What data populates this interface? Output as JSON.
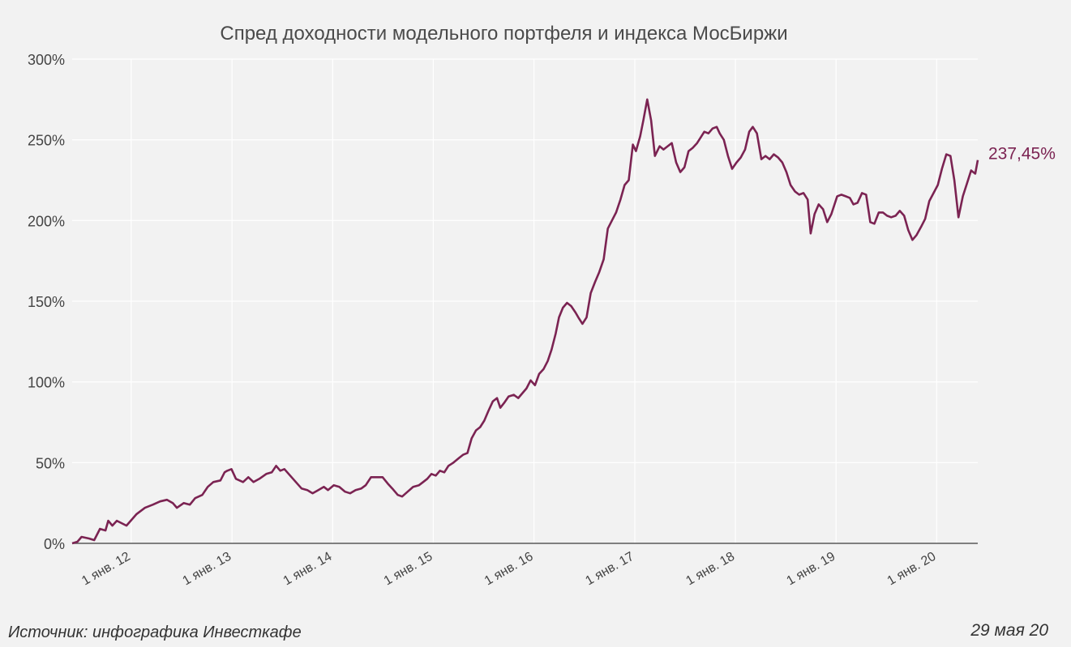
{
  "title": "Спред доходности модельного портфеля и индекса МосБиржи",
  "source": "Источник: инфографика Инвесткафе",
  "date": "29 мая 20",
  "end_label": "237,45%",
  "colors": {
    "background": "#f2f2f2",
    "series": "#7b2352",
    "grid": "#ffffff",
    "axis": "#595959"
  },
  "chart_data": {
    "type": "line",
    "title": "Спред доходности модельного портфеля и индекса МосБиржи",
    "xlabel": "",
    "ylabel": "",
    "ylim": [
      0,
      300
    ],
    "xlim": [
      "2011-06-01",
      "2020-05-29"
    ],
    "y_ticks": [
      0,
      50,
      100,
      150,
      200,
      250,
      300
    ],
    "y_tick_labels": [
      "0%",
      "50%",
      "100%",
      "150%",
      "200%",
      "250%",
      "300%"
    ],
    "x_ticks": [
      "2012-01-01",
      "2013-01-01",
      "2014-01-01",
      "2015-01-01",
      "2016-01-01",
      "2017-01-01",
      "2018-01-01",
      "2019-01-01",
      "2020-01-01"
    ],
    "x_tick_labels": [
      "1 янв. 12",
      "1 янв. 13",
      "1 янв. 14",
      "1 янв. 15",
      "1 янв. 16",
      "1 янв. 17",
      "1 янв. 18",
      "1 янв. 19",
      "1 янв. 20"
    ],
    "grid": true,
    "series": [
      {
        "values": [
          [
            "2011-06-01",
            0
          ],
          [
            "2011-06-20",
            1
          ],
          [
            "2011-07-05",
            4
          ],
          [
            "2011-08-01",
            3
          ],
          [
            "2011-08-20",
            2
          ],
          [
            "2011-09-10",
            9
          ],
          [
            "2011-09-30",
            8
          ],
          [
            "2011-10-10",
            14
          ],
          [
            "2011-10-25",
            11
          ],
          [
            "2011-11-10",
            14
          ],
          [
            "2011-12-15",
            11
          ],
          [
            "2012-01-20",
            18
          ],
          [
            "2012-02-20",
            22
          ],
          [
            "2012-03-20",
            24
          ],
          [
            "2012-04-15",
            26
          ],
          [
            "2012-05-10",
            27
          ],
          [
            "2012-05-31",
            25
          ],
          [
            "2012-06-15",
            22
          ],
          [
            "2012-07-10",
            25
          ],
          [
            "2012-08-01",
            24
          ],
          [
            "2012-08-20",
            28
          ],
          [
            "2012-09-15",
            30
          ],
          [
            "2012-10-05",
            35
          ],
          [
            "2012-10-25",
            38
          ],
          [
            "2012-11-20",
            39
          ],
          [
            "2012-12-05",
            44
          ],
          [
            "2012-12-15",
            45
          ],
          [
            "2012-12-30",
            46
          ],
          [
            "2013-01-15",
            40
          ],
          [
            "2013-02-10",
            38
          ],
          [
            "2013-03-01",
            41
          ],
          [
            "2013-03-20",
            38
          ],
          [
            "2013-04-10",
            40
          ],
          [
            "2013-05-05",
            43
          ],
          [
            "2013-05-25",
            44
          ],
          [
            "2013-06-10",
            48
          ],
          [
            "2013-06-25",
            45
          ],
          [
            "2013-07-10",
            46
          ],
          [
            "2013-08-10",
            40
          ],
          [
            "2013-09-10",
            34
          ],
          [
            "2013-10-01",
            33
          ],
          [
            "2013-10-20",
            31
          ],
          [
            "2013-11-10",
            33
          ],
          [
            "2013-11-30",
            35
          ],
          [
            "2013-12-15",
            33
          ],
          [
            "2014-01-05",
            36
          ],
          [
            "2014-01-25",
            35
          ],
          [
            "2014-02-15",
            32
          ],
          [
            "2014-03-05",
            31
          ],
          [
            "2014-03-25",
            33
          ],
          [
            "2014-04-15",
            34
          ],
          [
            "2014-05-01",
            36
          ],
          [
            "2014-05-20",
            41
          ],
          [
            "2014-06-10",
            41
          ],
          [
            "2014-07-01",
            41
          ],
          [
            "2014-07-20",
            37
          ],
          [
            "2014-08-05",
            34
          ],
          [
            "2014-08-25",
            30
          ],
          [
            "2014-09-10",
            29
          ],
          [
            "2014-09-30",
            32
          ],
          [
            "2014-10-20",
            35
          ],
          [
            "2014-11-10",
            36
          ],
          [
            "2014-11-25",
            38
          ],
          [
            "2014-12-10",
            40
          ],
          [
            "2014-12-25",
            43
          ],
          [
            "2015-01-10",
            42
          ],
          [
            "2015-01-25",
            45
          ],
          [
            "2015-02-10",
            44
          ],
          [
            "2015-02-25",
            48
          ],
          [
            "2015-03-15",
            50
          ],
          [
            "2015-04-05",
            53
          ],
          [
            "2015-04-20",
            55
          ],
          [
            "2015-05-05",
            56
          ],
          [
            "2015-05-20",
            65
          ],
          [
            "2015-06-05",
            70
          ],
          [
            "2015-06-20",
            72
          ],
          [
            "2015-07-05",
            76
          ],
          [
            "2015-07-20",
            82
          ],
          [
            "2015-08-05",
            88
          ],
          [
            "2015-08-20",
            90
          ],
          [
            "2015-09-01",
            84
          ],
          [
            "2015-09-15",
            87
          ],
          [
            "2015-10-01",
            91
          ],
          [
            "2015-10-20",
            92
          ],
          [
            "2015-11-05",
            90
          ],
          [
            "2015-11-20",
            93
          ],
          [
            "2015-12-05",
            96
          ],
          [
            "2015-12-20",
            101
          ],
          [
            "2016-01-05",
            98
          ],
          [
            "2016-01-20",
            105
          ],
          [
            "2016-02-05",
            108
          ],
          [
            "2016-02-20",
            113
          ],
          [
            "2016-03-05",
            120
          ],
          [
            "2016-03-20",
            130
          ],
          [
            "2016-04-01",
            140
          ],
          [
            "2016-04-15",
            146
          ],
          [
            "2016-04-30",
            149
          ],
          [
            "2016-05-15",
            147
          ],
          [
            "2016-05-31",
            143
          ],
          [
            "2016-06-10",
            140
          ],
          [
            "2016-06-25",
            136
          ],
          [
            "2016-07-10",
            140
          ],
          [
            "2016-07-25",
            155
          ],
          [
            "2016-08-10",
            162
          ],
          [
            "2016-08-25",
            168
          ],
          [
            "2016-09-10",
            176
          ],
          [
            "2016-09-25",
            195
          ],
          [
            "2016-10-10",
            200
          ],
          [
            "2016-10-25",
            205
          ],
          [
            "2016-11-10",
            213
          ],
          [
            "2016-11-25",
            222
          ],
          [
            "2016-12-10",
            225
          ],
          [
            "2016-12-25",
            247
          ],
          [
            "2017-01-05",
            243
          ],
          [
            "2017-01-20",
            252
          ],
          [
            "2017-02-01",
            262
          ],
          [
            "2017-02-15",
            275
          ],
          [
            "2017-03-01",
            262
          ],
          [
            "2017-03-15",
            240
          ],
          [
            "2017-04-01",
            246
          ],
          [
            "2017-04-15",
            244
          ],
          [
            "2017-04-30",
            246
          ],
          [
            "2017-05-15",
            248
          ],
          [
            "2017-05-31",
            236
          ],
          [
            "2017-06-15",
            230
          ],
          [
            "2017-06-30",
            233
          ],
          [
            "2017-07-15",
            243
          ],
          [
            "2017-07-30",
            245
          ],
          [
            "2017-08-15",
            248
          ],
          [
            "2017-08-30",
            252
          ],
          [
            "2017-09-10",
            255
          ],
          [
            "2017-09-25",
            254
          ],
          [
            "2017-10-10",
            257
          ],
          [
            "2017-10-25",
            258
          ],
          [
            "2017-11-05",
            254
          ],
          [
            "2017-11-20",
            250
          ],
          [
            "2017-12-05",
            240
          ],
          [
            "2017-12-20",
            232
          ],
          [
            "2018-01-05",
            236
          ],
          [
            "2018-01-20",
            239
          ],
          [
            "2018-02-05",
            244
          ],
          [
            "2018-02-20",
            255
          ],
          [
            "2018-03-05",
            258
          ],
          [
            "2018-03-20",
            254
          ],
          [
            "2018-04-05",
            238
          ],
          [
            "2018-04-20",
            240
          ],
          [
            "2018-05-05",
            238
          ],
          [
            "2018-05-20",
            241
          ],
          [
            "2018-06-05",
            239
          ],
          [
            "2018-06-20",
            236
          ],
          [
            "2018-07-05",
            230
          ],
          [
            "2018-07-20",
            222
          ],
          [
            "2018-08-05",
            218
          ],
          [
            "2018-08-20",
            216
          ],
          [
            "2018-09-05",
            217
          ],
          [
            "2018-09-20",
            213
          ],
          [
            "2018-10-01",
            192
          ],
          [
            "2018-10-15",
            204
          ],
          [
            "2018-10-30",
            210
          ],
          [
            "2018-11-15",
            207
          ],
          [
            "2018-11-30",
            199
          ],
          [
            "2018-12-15",
            204
          ],
          [
            "2019-01-05",
            215
          ],
          [
            "2019-01-20",
            216
          ],
          [
            "2019-02-05",
            215
          ],
          [
            "2019-02-20",
            214
          ],
          [
            "2019-03-05",
            210
          ],
          [
            "2019-03-20",
            211
          ],
          [
            "2019-04-05",
            217
          ],
          [
            "2019-04-20",
            216
          ],
          [
            "2019-05-05",
            199
          ],
          [
            "2019-05-20",
            198
          ],
          [
            "2019-06-05",
            205
          ],
          [
            "2019-06-20",
            205
          ],
          [
            "2019-07-05",
            203
          ],
          [
            "2019-07-20",
            202
          ],
          [
            "2019-08-05",
            203
          ],
          [
            "2019-08-20",
            206
          ],
          [
            "2019-09-05",
            203
          ],
          [
            "2019-09-20",
            194
          ],
          [
            "2019-10-05",
            188
          ],
          [
            "2019-10-20",
            191
          ],
          [
            "2019-11-05",
            196
          ],
          [
            "2019-11-20",
            201
          ],
          [
            "2019-12-05",
            212
          ],
          [
            "2020-01-05",
            222
          ],
          [
            "2020-01-20",
            232
          ],
          [
            "2020-02-05",
            241
          ],
          [
            "2020-02-20",
            240
          ],
          [
            "2020-03-05",
            225
          ],
          [
            "2020-03-20",
            202
          ],
          [
            "2020-04-05",
            215
          ],
          [
            "2020-04-20",
            223
          ],
          [
            "2020-05-05",
            231
          ],
          [
            "2020-05-20",
            229
          ],
          [
            "2020-05-29",
            237.45
          ]
        ]
      }
    ]
  }
}
